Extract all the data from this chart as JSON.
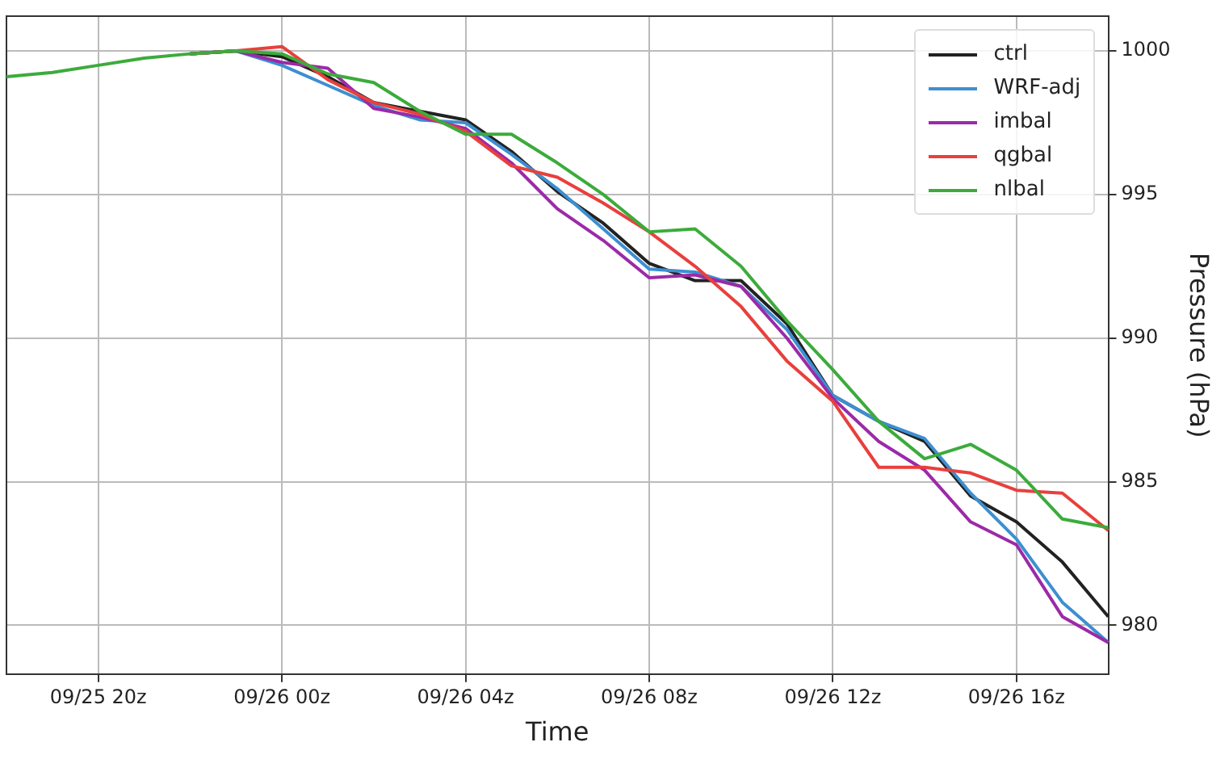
{
  "chart_data": {
    "type": "line",
    "xlabel": "Time",
    "ylabel": "Pressure (hPa)",
    "categories": [
      null,
      null,
      "09/25 20z",
      null,
      null,
      null,
      "09/26 00z",
      null,
      null,
      null,
      "09/26 04z",
      null,
      null,
      null,
      "09/26 08z",
      null,
      null,
      null,
      "09/26 12z",
      null,
      null,
      null,
      "09/26 16z",
      null,
      null
    ],
    "ylim": [
      978.3,
      1001.2
    ],
    "yticks": [
      980,
      985,
      990,
      995,
      1000
    ],
    "grid": true,
    "legend": "top right",
    "series": [
      {
        "name": "ctrl",
        "color": "#222222",
        "values": [
          null,
          null,
          null,
          null,
          999.9,
          1000.0,
          999.8,
          999.1,
          998.2,
          997.9,
          997.6,
          996.5,
          995.1,
          994.0,
          992.6,
          992.0,
          992.0,
          990.5,
          988.0,
          987.1,
          986.4,
          984.5,
          983.6,
          982.2,
          980.3
        ]
      },
      {
        "name": "WRF-adj",
        "color": "#3d8fd0",
        "values": [
          null,
          null,
          null,
          null,
          999.9,
          1000.0,
          999.5,
          998.8,
          998.1,
          997.6,
          997.5,
          996.4,
          995.2,
          993.8,
          992.4,
          992.3,
          991.8,
          990.3,
          988.0,
          987.1,
          986.5,
          984.6,
          983.0,
          980.8,
          979.4
        ]
      },
      {
        "name": "imbal",
        "color": "#9b2aa8",
        "values": [
          null,
          null,
          null,
          null,
          999.9,
          1000.0,
          999.6,
          999.4,
          998.0,
          997.7,
          997.3,
          996.1,
          994.5,
          993.4,
          992.1,
          992.2,
          991.8,
          990.0,
          987.9,
          986.4,
          985.4,
          983.6,
          982.8,
          980.3,
          979.4
        ]
      },
      {
        "name": "qgbal",
        "color": "#e8403d",
        "values": [
          null,
          null,
          null,
          null,
          999.9,
          1000.0,
          1000.15,
          999.0,
          998.2,
          997.8,
          997.2,
          996.0,
          995.6,
          994.7,
          993.7,
          992.5,
          991.1,
          989.2,
          987.8,
          985.5,
          985.5,
          985.3,
          984.7,
          984.6,
          983.3
        ]
      },
      {
        "name": "nlbal",
        "color": "#3cab3c",
        "values": [
          999.1,
          999.25,
          999.5,
          999.75,
          999.9,
          1000.0,
          999.9,
          999.2,
          998.9,
          997.9,
          997.1,
          997.1,
          996.1,
          995.0,
          993.7,
          993.8,
          992.5,
          990.6,
          988.9,
          987.1,
          985.8,
          986.3,
          985.4,
          983.7,
          983.4
        ]
      }
    ]
  }
}
